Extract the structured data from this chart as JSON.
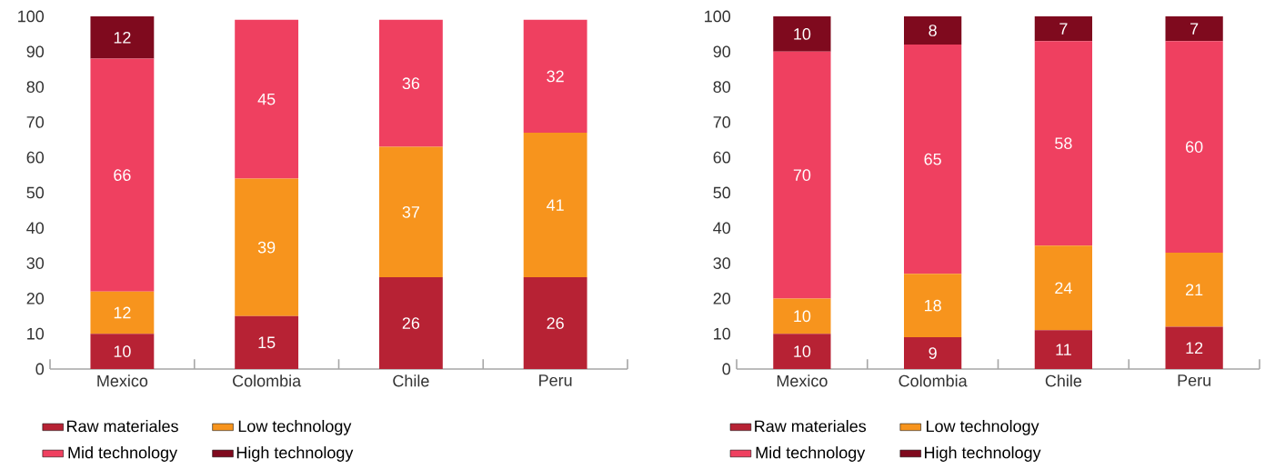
{
  "chart_data": [
    {
      "type": "bar",
      "stacked": true,
      "categories": [
        "Mexico",
        "Colombia",
        "Chile",
        "Peru"
      ],
      "series": [
        {
          "name": "Raw materiales",
          "color": "#b72234",
          "values": [
            10,
            15,
            26,
            26
          ]
        },
        {
          "name": "Low technology",
          "color": "#f7941d",
          "values": [
            12,
            39,
            37,
            41
          ]
        },
        {
          "name": "Mid technology",
          "color": "#ef4060",
          "values": [
            66,
            45,
            36,
            32
          ]
        },
        {
          "name": "High technology",
          "color": "#7f0a1e",
          "values": [
            12,
            null,
            null,
            null
          ]
        }
      ],
      "ylim": [
        0,
        100
      ],
      "yticks": [
        0,
        10,
        20,
        30,
        40,
        50,
        60,
        70,
        80,
        90,
        100
      ],
      "data_labels": true,
      "legend": "bottom"
    },
    {
      "type": "bar",
      "stacked": true,
      "categories": [
        "Mexico",
        "Colombia",
        "Chile",
        "Peru"
      ],
      "series": [
        {
          "name": "Raw materiales",
          "color": "#b72234",
          "values": [
            10,
            9,
            11,
            12
          ]
        },
        {
          "name": "Low technology",
          "color": "#f7941d",
          "values": [
            10,
            18,
            24,
            21
          ]
        },
        {
          "name": "Mid technology",
          "color": "#ef4060",
          "values": [
            70,
            65,
            58,
            60
          ]
        },
        {
          "name": "High technology",
          "color": "#7f0a1e",
          "values": [
            10,
            8,
            7,
            7
          ]
        }
      ],
      "ylim": [
        0,
        100
      ],
      "yticks": [
        0,
        10,
        20,
        30,
        40,
        50,
        60,
        70,
        80,
        90,
        100
      ],
      "data_labels": true,
      "legend": "bottom"
    }
  ]
}
